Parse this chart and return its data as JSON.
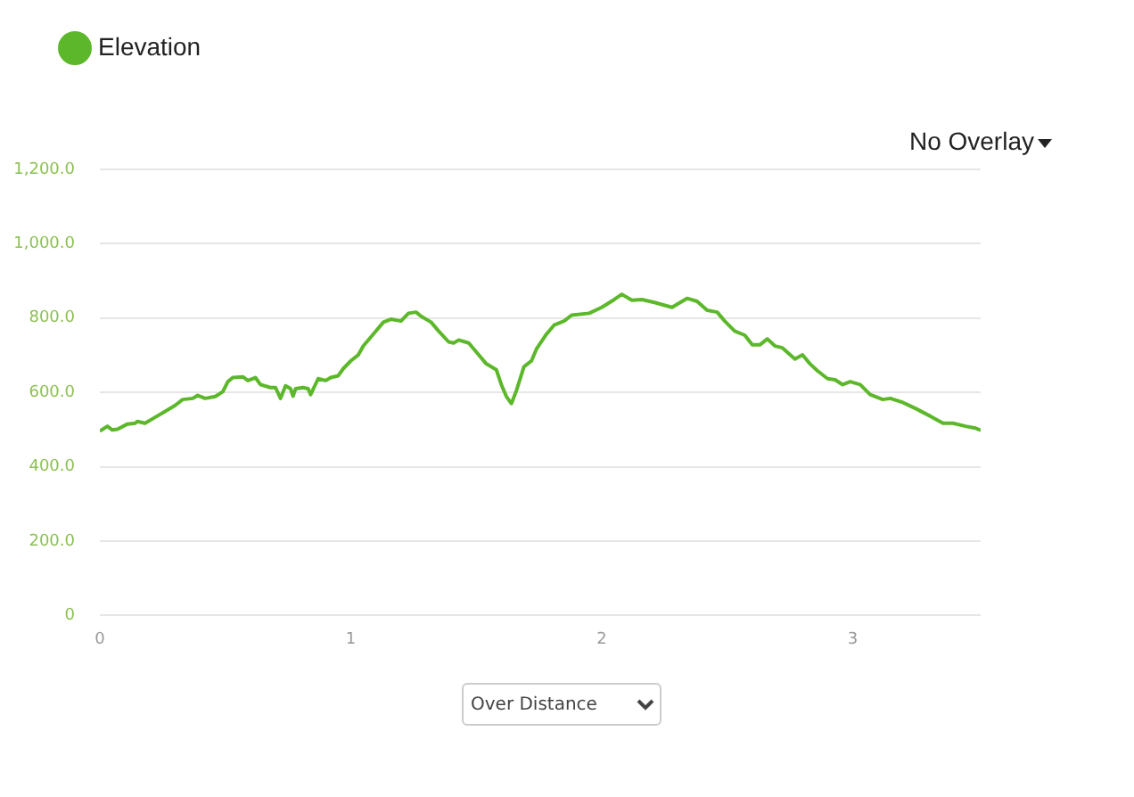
{
  "chart_data": {
    "type": "line",
    "x": [
      0,
      0.03,
      0.05,
      0.07,
      0.11,
      0.14,
      0.15,
      0.18,
      0.22,
      0.26,
      0.3,
      0.33,
      0.37,
      0.39,
      0.42,
      0.46,
      0.49,
      0.51,
      0.53,
      0.57,
      0.59,
      0.62,
      0.64,
      0.68,
      0.7,
      0.72,
      0.74,
      0.76,
      0.77,
      0.78,
      0.81,
      0.83,
      0.84,
      0.87,
      0.9,
      0.92,
      0.95,
      0.97,
      1,
      1.03,
      1.05,
      1.09,
      1.13,
      1.16,
      1.2,
      1.23,
      1.26,
      1.28,
      1.32,
      1.35,
      1.39,
      1.41,
      1.43,
      1.47,
      1.5,
      1.54,
      1.58,
      1.6,
      1.62,
      1.64,
      1.66,
      1.69,
      1.72,
      1.74,
      1.78,
      1.81,
      1.85,
      1.88,
      1.95,
      2,
      2.05,
      2.08,
      2.12,
      2.16,
      2.21,
      2.28,
      2.34,
      2.38,
      2.42,
      2.46,
      2.49,
      2.53,
      2.57,
      2.6,
      2.63,
      2.66,
      2.69,
      2.72,
      2.77,
      2.8,
      2.83,
      2.86,
      2.9,
      2.93,
      2.96,
      2.99,
      3.03,
      3.07,
      3.12,
      3.15,
      3.2,
      3.25,
      3.31,
      3.36,
      3.4,
      3.45,
      3.49,
      3.51
    ],
    "series": [
      {
        "name": "Elevation",
        "color": "#5cb82a",
        "values": [
          496,
          509,
          499,
          501,
          515,
          517,
          522,
          517,
          533,
          549,
          565,
          581,
          584,
          592,
          584,
          589,
          602,
          629,
          640,
          642,
          632,
          640,
          621,
          613,
          613,
          584,
          618,
          610,
          590,
          610,
          613,
          610,
          594,
          637,
          632,
          640,
          645,
          664,
          685,
          701,
          725,
          757,
          789,
          797,
          792,
          813,
          816,
          805,
          789,
          765,
          736,
          733,
          741,
          733,
          709,
          677,
          661,
          621,
          589,
          570,
          605,
          669,
          685,
          717,
          757,
          781,
          792,
          808,
          813,
          829,
          850,
          864,
          848,
          850,
          842,
          829,
          853,
          845,
          821,
          816,
          792,
          765,
          754,
          728,
          728,
          744,
          725,
          720,
          690,
          701,
          677,
          658,
          637,
          634,
          621,
          629,
          621,
          594,
          581,
          584,
          573,
          557,
          536,
          517,
          517,
          509,
          504,
          498
        ]
      }
    ],
    "xlim": [
      0,
      3.51
    ],
    "xticks": [
      0,
      1,
      2,
      3
    ],
    "ylim": [
      0,
      1200
    ],
    "yticks": [
      0,
      {
        "value": 200,
        "label": "200.0"
      },
      {
        "value": 400,
        "label": "400.0"
      },
      {
        "value": 600,
        "label": "600.0"
      },
      {
        "value": 800,
        "label": "800.0"
      },
      {
        "value": 1000,
        "label": "1,000.0"
      },
      {
        "value": 1200,
        "label": "1,200.0"
      }
    ],
    "grid": "y",
    "legend": "top left",
    "marker": "none",
    "line_style": "solid",
    "annotations": [
      "No Overlay",
      "Over Distance"
    ]
  }
}
